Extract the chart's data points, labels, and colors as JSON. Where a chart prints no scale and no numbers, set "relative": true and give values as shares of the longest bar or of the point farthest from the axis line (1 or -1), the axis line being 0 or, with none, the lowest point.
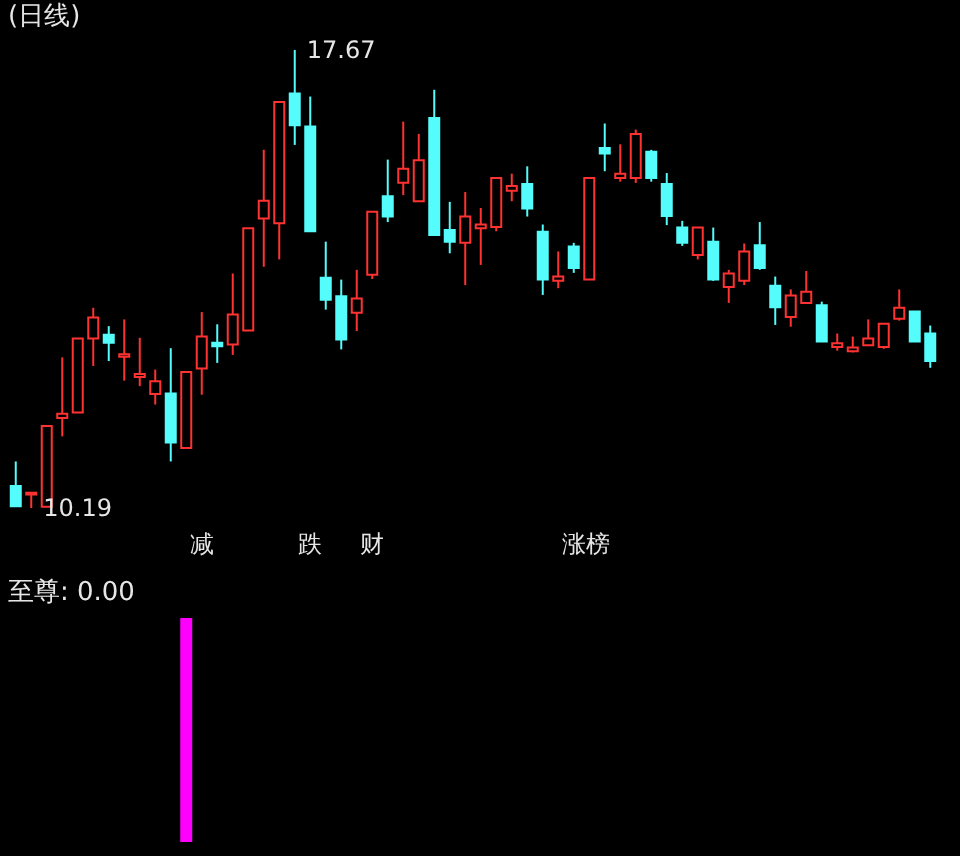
{
  "chart_data": [
    {
      "type": "candlestick",
      "title": "(日线)",
      "categories": [
        null,
        null,
        null,
        null,
        null,
        null,
        null,
        null,
        null,
        null,
        null,
        null,
        null,
        null,
        null,
        null,
        null,
        null,
        null,
        null,
        null,
        null,
        null,
        null,
        null,
        null,
        null,
        null,
        null,
        null,
        null,
        null,
        null,
        null,
        null,
        null,
        null,
        null,
        null,
        null,
        null,
        null,
        null,
        null,
        null,
        null,
        null,
        null,
        null,
        null,
        null,
        null,
        null,
        null,
        null,
        null,
        null,
        null,
        null,
        null
      ],
      "ohlc": [
        [
          10.55,
          10.95,
          10.21,
          10.22
        ],
        [
          10.41,
          10.44,
          10.19,
          10.44
        ],
        [
          10.21,
          11.53,
          10.21,
          11.53
        ],
        [
          11.66,
          12.65,
          11.36,
          11.73
        ],
        [
          11.75,
          12.96,
          11.75,
          12.96
        ],
        [
          12.96,
          13.46,
          12.51,
          13.3
        ],
        [
          13.02,
          13.16,
          12.59,
          12.89
        ],
        [
          12.66,
          13.27,
          12.27,
          12.7
        ],
        [
          12.33,
          12.97,
          12.18,
          12.38
        ],
        [
          12.05,
          12.45,
          11.88,
          12.26
        ],
        [
          12.06,
          12.8,
          10.95,
          11.26
        ],
        [
          11.17,
          12.41,
          11.17,
          12.41
        ],
        [
          12.47,
          13.39,
          12.04,
          12.99
        ],
        [
          12.89,
          13.19,
          12.56,
          12.83
        ],
        [
          12.86,
          14.02,
          12.69,
          13.35
        ],
        [
          13.09,
          14.76,
          13.09,
          14.76
        ],
        [
          14.92,
          16.04,
          14.13,
          15.21
        ],
        [
          14.84,
          16.82,
          14.25,
          16.82
        ],
        [
          16.96,
          17.67,
          16.12,
          16.44
        ],
        [
          16.42,
          16.91,
          14.71,
          14.71
        ],
        [
          13.95,
          14.54,
          13.43,
          13.59
        ],
        [
          13.65,
          13.92,
          12.78,
          12.94
        ],
        [
          13.38,
          14.08,
          13.08,
          13.61
        ],
        [
          14.0,
          15.03,
          13.93,
          15.03
        ],
        [
          15.28,
          15.88,
          14.86,
          14.95
        ],
        [
          15.5,
          16.5,
          15.3,
          15.73
        ],
        [
          15.2,
          16.3,
          15.2,
          15.87
        ],
        [
          16.56,
          17.02,
          14.65,
          14.65
        ],
        [
          14.73,
          15.19,
          14.35,
          14.54
        ],
        [
          14.52,
          15.35,
          13.83,
          14.95
        ],
        [
          14.76,
          15.09,
          14.16,
          14.82
        ],
        [
          14.78,
          15.58,
          14.71,
          15.58
        ],
        [
          15.37,
          15.65,
          15.2,
          15.45
        ],
        [
          15.48,
          15.77,
          14.95,
          15.08
        ],
        [
          14.7,
          14.82,
          13.67,
          13.92
        ],
        [
          13.9,
          14.38,
          13.78,
          13.97
        ],
        [
          14.46,
          14.52,
          14.03,
          14.11
        ],
        [
          13.92,
          15.58,
          13.92,
          15.58
        ],
        [
          16.07,
          16.47,
          15.69,
          15.98
        ],
        [
          15.58,
          16.13,
          15.52,
          15.65
        ],
        [
          15.58,
          16.37,
          15.5,
          16.3
        ],
        [
          16.01,
          16.04,
          15.52,
          15.58
        ],
        [
          15.48,
          15.66,
          14.81,
          14.96
        ],
        [
          14.77,
          14.88,
          14.47,
          14.52
        ],
        [
          14.32,
          14.77,
          14.25,
          14.77
        ],
        [
          14.54,
          14.77,
          13.9,
          13.92
        ],
        [
          13.8,
          14.08,
          13.54,
          14.02
        ],
        [
          13.9,
          14.51,
          13.83,
          14.38
        ],
        [
          14.48,
          14.86,
          14.08,
          14.11
        ],
        [
          13.82,
          13.97,
          13.18,
          13.47
        ],
        [
          13.31,
          13.76,
          13.15,
          13.66
        ],
        [
          13.54,
          14.06,
          13.54,
          13.72
        ],
        [
          13.5,
          13.56,
          12.91,
          12.91
        ],
        [
          12.82,
          13.04,
          12.76,
          12.88
        ],
        [
          12.75,
          12.99,
          12.73,
          12.81
        ],
        [
          12.85,
          13.27,
          12.85,
          12.96
        ],
        [
          12.82,
          13.2,
          12.79,
          13.2
        ],
        [
          13.28,
          13.76,
          13.25,
          13.46
        ],
        [
          13.4,
          13.4,
          12.91,
          12.91
        ],
        [
          13.04,
          13.17,
          12.48,
          12.59
        ]
      ],
      "colors": [
        "#54fcfc",
        "#ff3232",
        "#ff3232",
        "#ff3232",
        "#ff3232",
        "#ff3232",
        "#54fcfc",
        "#ff3232",
        "#ff3232",
        "#ff3232",
        "#54fcfc",
        "#ff3232",
        "#ff3232",
        "#54fcfc",
        "#ff3232",
        "#ff3232",
        "#ff3232",
        "#ff3232",
        "#54fcfc",
        "#54fcfc",
        "#54fcfc",
        "#54fcfc",
        "#ff3232",
        "#ff3232",
        "#54fcfc",
        "#ff3232",
        "#ff3232",
        "#54fcfc",
        "#54fcfc",
        "#ff3232",
        "#ff3232",
        "#ff3232",
        "#ff3232",
        "#54fcfc",
        "#54fcfc",
        "#ff3232",
        "#54fcfc",
        "#ff3232",
        "#54fcfc",
        "#ff3232",
        "#ff3232",
        "#54fcfc",
        "#54fcfc",
        "#54fcfc",
        "#ff3232",
        "#54fcfc",
        "#ff3232",
        "#ff3232",
        "#54fcfc",
        "#54fcfc",
        "#ff3232",
        "#ff3232",
        "#54fcfc",
        "#ff3232",
        "#ff3232",
        "#ff3232",
        "#ff3232",
        "#ff3232",
        "#54fcfc",
        "#54fcfc"
      ],
      "annotations": [
        "17.67",
        "10.19",
        "减",
        "跌",
        "财",
        "涨榜"
      ]
    },
    {
      "type": "bar",
      "title": "至尊: 0.00",
      "relative": true,
      "color": "#ff00ff",
      "categories": [
        null,
        null,
        null,
        null,
        null,
        null,
        null,
        null,
        null,
        null,
        null,
        null,
        null,
        null,
        null,
        null,
        null,
        null,
        null,
        null,
        null,
        null,
        null,
        null,
        null,
        null,
        null,
        null,
        null,
        null,
        null,
        null,
        null,
        null,
        null,
        null,
        null,
        null,
        null,
        null,
        null,
        null,
        null,
        null,
        null,
        null,
        null,
        null,
        null,
        null,
        null,
        null,
        null,
        null,
        null,
        null,
        null,
        null,
        null,
        null
      ],
      "values": [
        null,
        null,
        null,
        null,
        null,
        null,
        null,
        null,
        null,
        null,
        null,
        1,
        null,
        null,
        null,
        null,
        null,
        null,
        null,
        null,
        null,
        null,
        null,
        null,
        null,
        null,
        null,
        null,
        null,
        null,
        null,
        null,
        null,
        null,
        null,
        null,
        null,
        null,
        null,
        null,
        null,
        null,
        null,
        null,
        null,
        null,
        null,
        null,
        null,
        null,
        null,
        null,
        null,
        null,
        null,
        null,
        null,
        null,
        null,
        null
      ]
    }
  ]
}
